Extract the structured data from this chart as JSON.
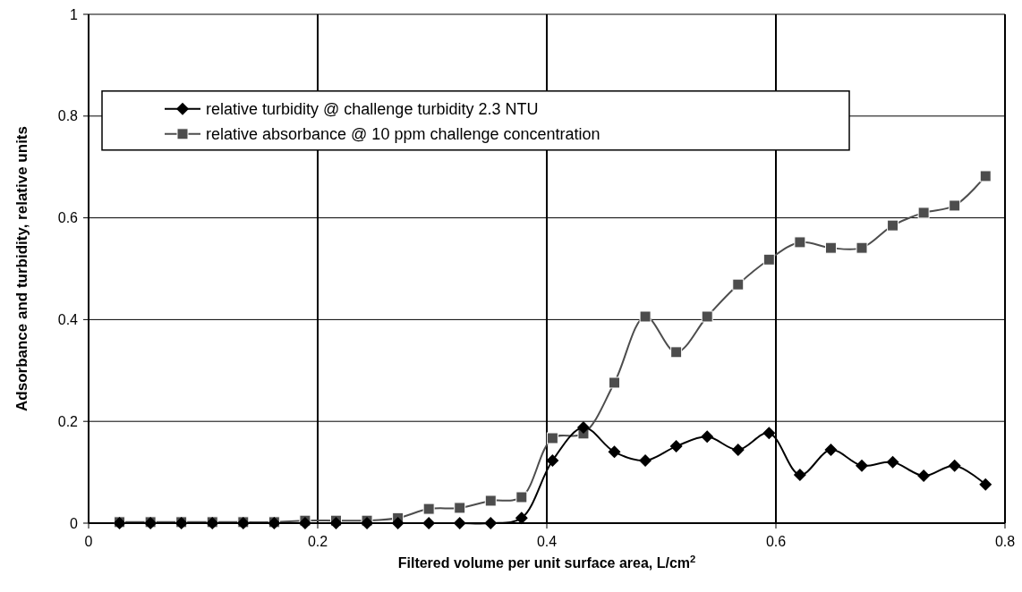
{
  "chart_data": {
    "type": "line",
    "xlabel": "Filtered volume per unit surface area, L/cm$^{2}$",
    "ylabel": "Adsorbance and turbidity, relative units",
    "x": [
      0.027,
      0.054,
      0.081,
      0.108,
      0.135,
      0.162,
      0.189,
      0.216,
      0.243,
      0.27,
      0.297,
      0.324,
      0.351,
      0.378,
      0.405,
      0.432,
      0.459,
      0.486,
      0.513,
      0.54,
      0.567,
      0.594,
      0.621,
      0.648,
      0.675,
      0.702,
      0.729,
      0.756,
      0.783
    ],
    "series": [
      {
        "name": "relative turbidity @ challenge turbidity 2.3 NTU",
        "color": "#000000",
        "marker": "diamond",
        "values": [
          0,
          0,
          0,
          0,
          0,
          0,
          0,
          0,
          0,
          0,
          0,
          0,
          0,
          0.01,
          0.123,
          0.188,
          0.14,
          0.123,
          0.151,
          0.17,
          0.144,
          0.177,
          0.095,
          0.144,
          0.113,
          0.12,
          0.093,
          0.113,
          0.076
        ]
      },
      {
        "name": "relative absorbance @ 10 ppm challenge concentration",
        "color": "#4d4d4d",
        "marker": "square",
        "values": [
          0.002,
          0.002,
          0.002,
          0.002,
          0.002,
          0.002,
          0.005,
          0.005,
          0.005,
          0.01,
          0.028,
          0.03,
          0.044,
          0.051,
          0.167,
          0.176,
          0.276,
          0.406,
          0.336,
          0.406,
          0.469,
          0.518,
          0.552,
          0.541,
          0.541,
          0.585,
          0.61,
          0.624,
          0.682
        ]
      }
    ],
    "xlim": [
      0,
      0.8
    ],
    "xticks": [
      0,
      0.2,
      0.4,
      0.6,
      0.8
    ],
    "ylim": [
      0,
      1
    ],
    "yticks": [
      0,
      0.2,
      0.4,
      0.6,
      0.8,
      1
    ],
    "grid": true,
    "legend": "top left"
  }
}
